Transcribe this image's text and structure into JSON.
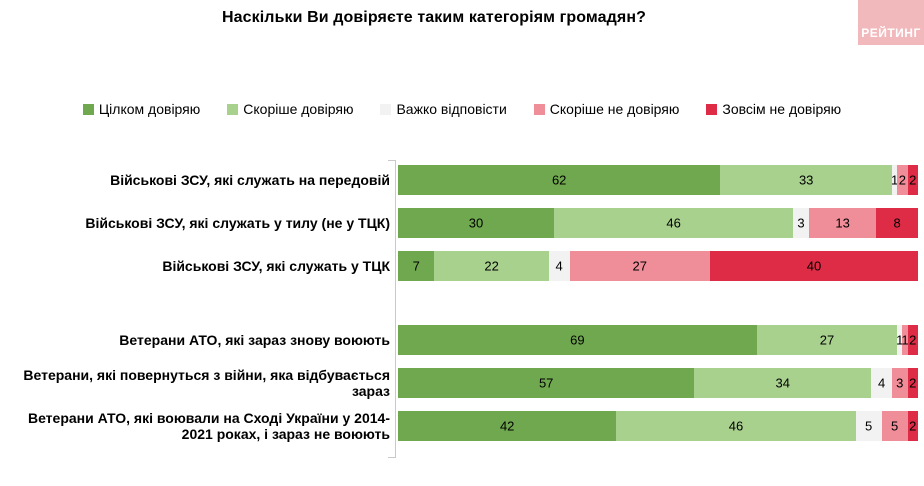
{
  "title": "Наскільки Ви довіряєте таким категоріям громадян?",
  "logo": {
    "text": "РЕЙТИНГ",
    "bg_color": "#F2B9BD",
    "text_color": "#FFFFFF"
  },
  "colors": {
    "axis": "#C9C9C9",
    "background": "#FFFFFF",
    "label_text": "#000000"
  },
  "chart_data": {
    "type": "bar",
    "orientation": "horizontal_stacked",
    "unit": "percent",
    "xlim": [
      0,
      100
    ],
    "legend_position": "top",
    "grid": false,
    "group_break_after_index": 2,
    "categories": [
      "Військові ЗСУ, які служать на передовій",
      "Військові ЗСУ, які служать у тилу (не у ТЦК)",
      "Військові ЗСУ, які служать у ТЦК",
      "Ветерани АТО, які зараз знову воюють",
      "Ветерани, які повернуться з війни, яка відбувається зараз",
      "Ветерани АТО, які воювали на Сході України у 2014-2021 роках, і зараз не воюють"
    ],
    "series": [
      {
        "name": "Цілком довіряю",
        "color": "#6FA84E",
        "values": [
          62,
          30,
          7,
          69,
          57,
          42
        ]
      },
      {
        "name": "Скоріше довіряю",
        "color": "#A9D18E",
        "values": [
          33,
          46,
          22,
          27,
          34,
          46
        ]
      },
      {
        "name": "Важко відповісти",
        "color": "#F2F2F2",
        "values": [
          1,
          3,
          4,
          1,
          4,
          5
        ]
      },
      {
        "name": "Скоріше не довіряю",
        "color": "#EF8D98",
        "values": [
          2,
          13,
          27,
          1,
          3,
          5
        ]
      },
      {
        "name": "Зовсім не довіряю",
        "color": "#DE2C46",
        "values": [
          2,
          8,
          40,
          2,
          2,
          2
        ]
      }
    ]
  }
}
